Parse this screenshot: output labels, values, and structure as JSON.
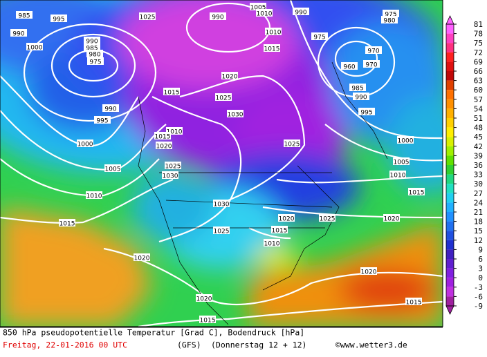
{
  "map": {
    "isobar_labels": [
      985,
      995,
      990,
      1000,
      990,
      985,
      980,
      975,
      1025,
      990,
      1005,
      1010,
      990,
      1010,
      1015,
      975,
      975,
      980,
      970,
      960,
      970,
      985,
      990,
      995,
      1020,
      1015,
      1025,
      1030,
      990,
      995,
      1000,
      1010,
      1015,
      1020,
      1025,
      1000,
      1005,
      1010,
      1015,
      1005,
      1025,
      1030,
      1010,
      1015,
      1030,
      1025,
      1020,
      1025,
      1020,
      1015,
      1010,
      1020,
      1020,
      1020,
      1015,
      1015
    ]
  },
  "colorbar": {
    "ticks": [
      81,
      78,
      75,
      72,
      69,
      66,
      63,
      60,
      57,
      54,
      51,
      48,
      45,
      42,
      39,
      36,
      33,
      30,
      27,
      24,
      21,
      18,
      15,
      12,
      9,
      6,
      3,
      0,
      -3,
      -6,
      -9
    ],
    "colors": [
      "#ff60ff",
      "#ff40c0",
      "#ff3080",
      "#ff2020",
      "#e01010",
      "#c00808",
      "#e04000",
      "#ff7000",
      "#ff9000",
      "#ffb000",
      "#ffd000",
      "#ffee00",
      "#d8f000",
      "#a0f000",
      "#60e000",
      "#30d030",
      "#20d880",
      "#20e0c0",
      "#20d0f0",
      "#20b0ff",
      "#2090ff",
      "#2070f0",
      "#2050e0",
      "#2030d0",
      "#4020c0",
      "#6020d0",
      "#8020e0",
      "#a020e0",
      "#c030e0",
      "#a020a0"
    ]
  },
  "caption": {
    "line1": "850 hPa pseudopotentielle Temperatur [Grad C], Bodendruck [hPa]",
    "date": "Freitag, 22-01-2016  00 UTC",
    "model": "(GFS)",
    "run": "(Donnerstag 12 + 12)",
    "copyright": "©www.wetter3.de"
  }
}
